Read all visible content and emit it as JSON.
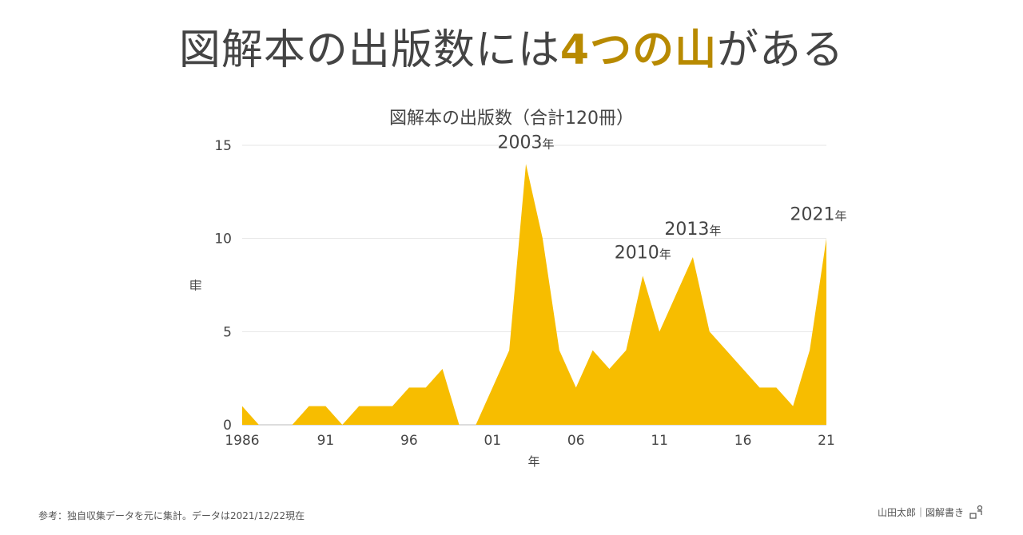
{
  "headline": {
    "part1": "図解本の出版数には",
    "accent": "4つの山",
    "part2": "がある",
    "accent_color": "#b88a00"
  },
  "chart_data": {
    "type": "area",
    "title": "図解本の出版数（合計120冊）",
    "xlabel": "年",
    "ylabel": "冊",
    "ylim": [
      0,
      15
    ],
    "yticks": [
      0,
      5,
      10,
      15
    ],
    "xlim": [
      1986,
      2021
    ],
    "xticks": [
      {
        "year": 1986,
        "label": "1986"
      },
      {
        "year": 1991,
        "label": "91"
      },
      {
        "year": 1996,
        "label": "96"
      },
      {
        "year": 2001,
        "label": "01"
      },
      {
        "year": 2006,
        "label": "06"
      },
      {
        "year": 2011,
        "label": "11"
      },
      {
        "year": 2016,
        "label": "16"
      },
      {
        "year": 2021,
        "label": "21"
      }
    ],
    "fill_color": "#f7bd00",
    "grid": true,
    "x": [
      1986,
      1987,
      1988,
      1989,
      1990,
      1991,
      1992,
      1993,
      1994,
      1995,
      1996,
      1997,
      1998,
      1999,
      2000,
      2001,
      2002,
      2003,
      2004,
      2005,
      2006,
      2007,
      2008,
      2009,
      2010,
      2011,
      2012,
      2013,
      2014,
      2015,
      2016,
      2017,
      2018,
      2019,
      2020,
      2021
    ],
    "values": [
      1,
      0,
      0,
      0,
      1,
      1,
      0,
      1,
      1,
      1,
      2,
      2,
      3,
      0,
      0,
      2,
      4,
      14,
      10,
      4,
      2,
      4,
      3,
      4,
      8,
      5,
      7,
      9,
      5,
      4,
      3,
      2,
      2,
      1,
      4,
      10
    ],
    "annotations": [
      {
        "year": 2003,
        "value": 14,
        "number": "2003",
        "suffix": "年"
      },
      {
        "year": 2010,
        "value": 8,
        "number": "2010",
        "suffix": "年"
      },
      {
        "year": 2013,
        "value": 9,
        "number": "2013",
        "suffix": "年"
      },
      {
        "year": 2021,
        "value": 10,
        "number": "2021",
        "suffix": "年"
      }
    ]
  },
  "footer": {
    "note": "参考：独自収集データを元に集計。データは2021/12/22現在",
    "credit": "山田太郎｜図解書き"
  }
}
